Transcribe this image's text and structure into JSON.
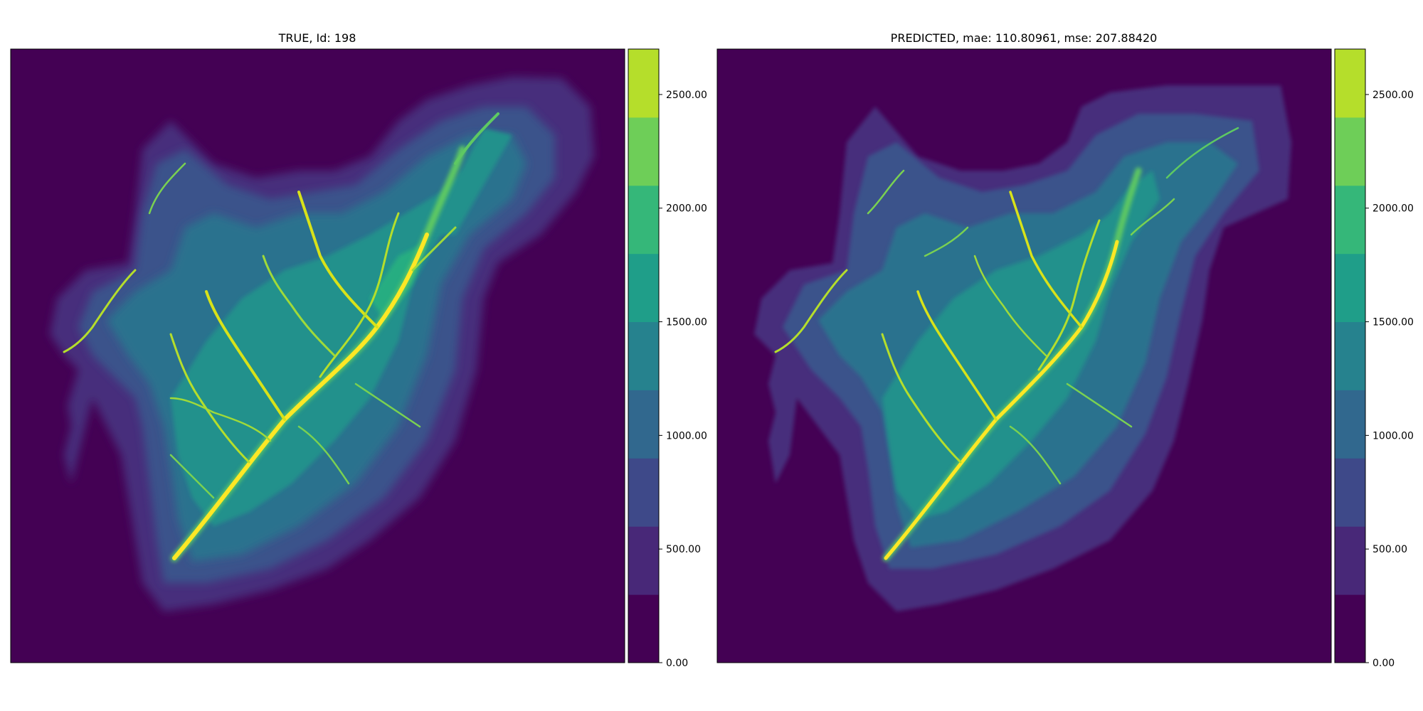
{
  "figure": {
    "left_title": "TRUE, Id: 198",
    "right_title": "PREDICTED, mae: 110.80961, mse: 207.88420"
  },
  "chart_data": [
    {
      "type": "heatmap",
      "title": "TRUE, Id: 198",
      "colormap": "viridis",
      "levels": [
        0,
        300,
        600,
        900,
        1200,
        1500,
        1800,
        2100,
        2400,
        2700
      ],
      "colorbar": {
        "range": [
          0,
          2700
        ],
        "ticks": [
          0,
          500,
          1000,
          1500,
          2000,
          2500
        ],
        "tick_labels": [
          "0.00",
          "500.00",
          "1000.00",
          "1500.00",
          "2000.00",
          "2500.00"
        ],
        "colors": [
          "#440154",
          "#482878",
          "#3e4989",
          "#31688e",
          "#26828e",
          "#1f9e89",
          "#35b779",
          "#6ece58",
          "#b5de2b",
          "#fde725"
        ]
      }
    },
    {
      "type": "heatmap",
      "title": "PREDICTED, mae: 110.80961, mse: 207.88420",
      "metrics": {
        "mae": 110.80961,
        "mse": 207.8842
      },
      "colormap": "viridis",
      "levels": [
        0,
        300,
        600,
        900,
        1200,
        1500,
        1800,
        2100,
        2400,
        2700
      ],
      "colorbar": {
        "range": [
          0,
          2700
        ],
        "ticks": [
          0,
          500,
          1000,
          1500,
          2000,
          2500
        ],
        "tick_labels": [
          "0.00",
          "500.00",
          "1000.00",
          "1500.00",
          "2000.00",
          "2500.00"
        ],
        "colors": [
          "#440154",
          "#482878",
          "#3e4989",
          "#31688e",
          "#26828e",
          "#1f9e89",
          "#35b779",
          "#6ece58",
          "#b5de2b",
          "#fde725"
        ]
      }
    }
  ]
}
